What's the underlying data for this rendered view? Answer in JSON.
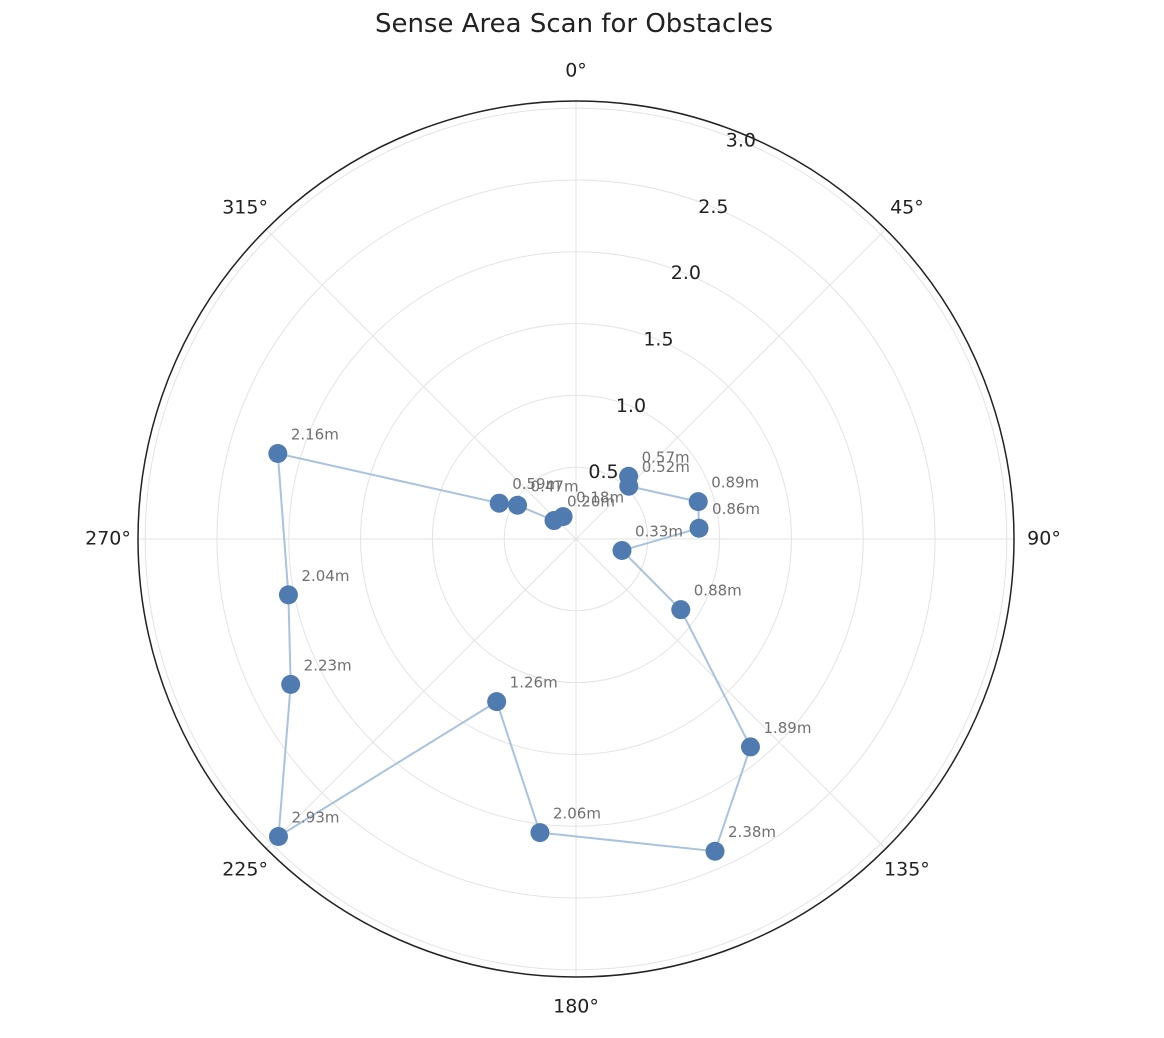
{
  "chart_data": {
    "type": "scatter",
    "projection": "polar",
    "title": "Sense Area Scan for Obstacles",
    "theta_direction": "clockwise",
    "theta_zero": "top",
    "angle_ticks": [
      {
        "deg": 0,
        "label": "0°"
      },
      {
        "deg": 45,
        "label": "45°"
      },
      {
        "deg": 90,
        "label": "90°"
      },
      {
        "deg": 135,
        "label": "135°"
      },
      {
        "deg": 180,
        "label": "180°"
      },
      {
        "deg": 225,
        "label": "225°"
      },
      {
        "deg": 270,
        "label": "270°"
      },
      {
        "deg": 315,
        "label": "315°"
      }
    ],
    "radial_ticks": [
      {
        "value": 0.5,
        "label": "0.5"
      },
      {
        "value": 1.0,
        "label": "1.0"
      },
      {
        "value": 1.5,
        "label": "1.5"
      },
      {
        "value": 2.0,
        "label": "2.0"
      },
      {
        "value": 2.5,
        "label": "2.5"
      },
      {
        "value": 3.0,
        "label": "3.0"
      }
    ],
    "rlim": [
      0,
      3.05
    ],
    "grid": true,
    "connect_points": true,
    "colors": {
      "marker": "#4f7bb0",
      "line": "#a9c3de",
      "grid": "#e3e3e3",
      "frame": "#222222",
      "label": "#707070"
    },
    "points": [
      {
        "theta": 40,
        "r": 0.57,
        "label": "0.57m"
      },
      {
        "theta": 45,
        "r": 0.52,
        "label": "0.52m"
      },
      {
        "theta": 73,
        "r": 0.89,
        "label": "0.89m"
      },
      {
        "theta": 85,
        "r": 0.86,
        "label": "0.86m"
      },
      {
        "theta": 104,
        "r": 0.33,
        "label": "0.33m"
      },
      {
        "theta": 124,
        "r": 0.88,
        "label": "0.88m"
      },
      {
        "theta": 140,
        "r": 1.89,
        "label": "1.89m"
      },
      {
        "theta": 156,
        "r": 2.38,
        "label": "2.38m"
      },
      {
        "theta": 187,
        "r": 2.06,
        "label": "2.06m"
      },
      {
        "theta": 206,
        "r": 1.26,
        "label": "1.26m"
      },
      {
        "theta": 225,
        "r": 2.93,
        "label": "2.93m"
      },
      {
        "theta": 243,
        "r": 2.23,
        "label": "2.23m"
      },
      {
        "theta": 259,
        "r": 2.04,
        "label": "2.04m"
      },
      {
        "theta": 286,
        "r": 2.16,
        "label": "2.16m"
      },
      {
        "theta": 295,
        "r": 0.59,
        "label": "0.59m"
      },
      {
        "theta": 300,
        "r": 0.47,
        "label": "0.47m"
      },
      {
        "theta": 310,
        "r": 0.2,
        "label": "0.20m"
      },
      {
        "theta": 330,
        "r": 0.18,
        "label": "0.18m"
      }
    ]
  }
}
